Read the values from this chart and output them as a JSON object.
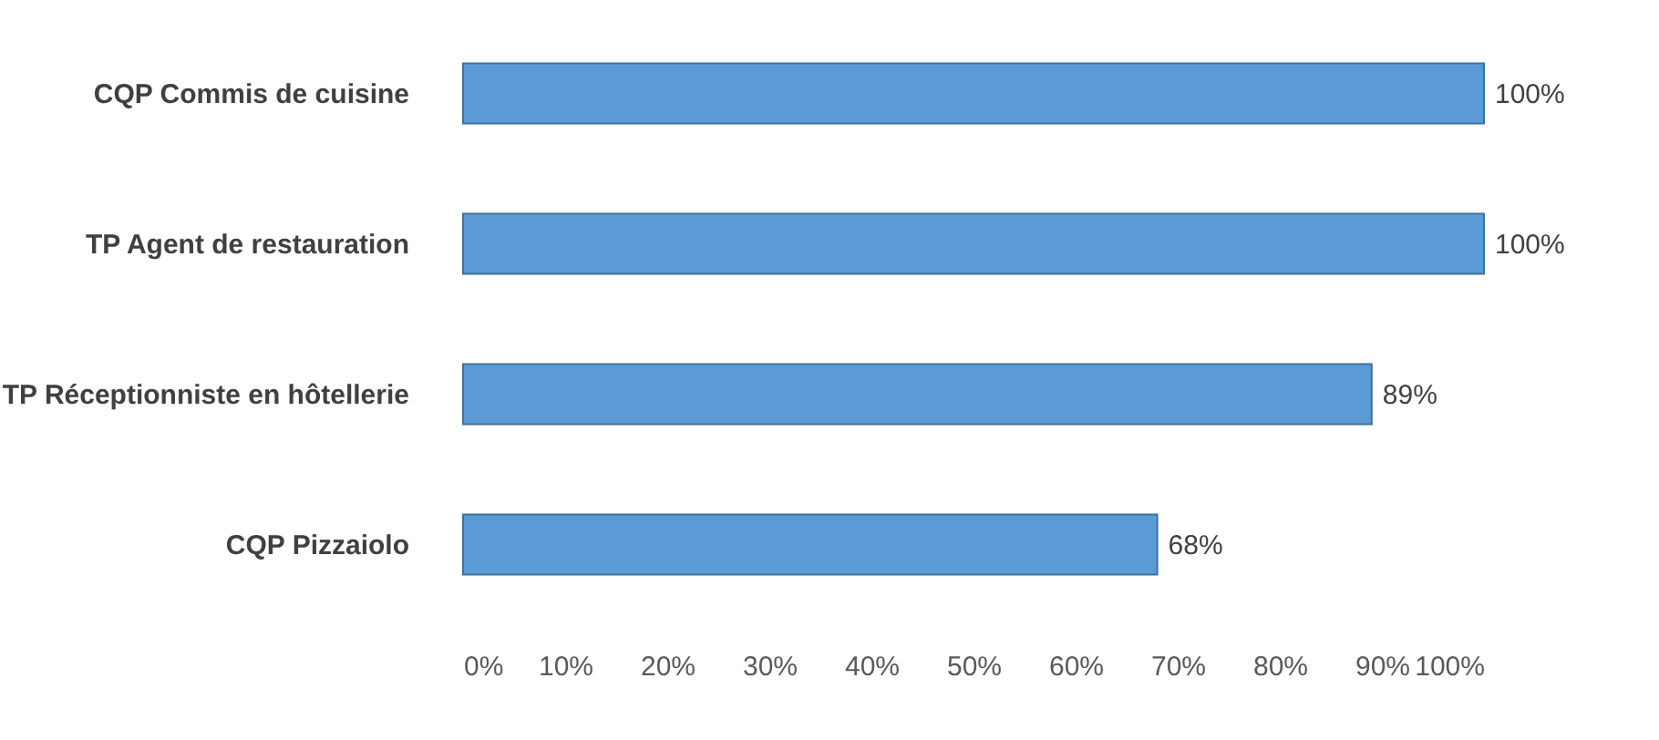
{
  "chart_data": {
    "type": "bar",
    "orientation": "horizontal",
    "categories": [
      "CQP Commis de cuisine",
      "TP Agent de restauration",
      "TP Réceptionniste en hôtellerie",
      "CQP Pizzaiolo"
    ],
    "values": [
      100,
      100,
      89,
      68
    ],
    "value_labels": [
      "100%",
      "100%",
      "89%",
      "68%"
    ],
    "color": "#5b9bd5",
    "xlim": [
      0,
      100
    ],
    "xticks": [
      {
        "value": 0,
        "label": "0%"
      },
      {
        "value": 10,
        "label": "10%"
      },
      {
        "value": 20,
        "label": "20%"
      },
      {
        "value": 30,
        "label": "30%"
      },
      {
        "value": 40,
        "label": "40%"
      },
      {
        "value": 50,
        "label": "50%"
      },
      {
        "value": 60,
        "label": "60%"
      },
      {
        "value": 70,
        "label": "70%"
      },
      {
        "value": 80,
        "label": "80%"
      },
      {
        "value": 90,
        "label": "90%"
      },
      {
        "value": 100,
        "label": "100%"
      }
    ],
    "grid": false
  }
}
